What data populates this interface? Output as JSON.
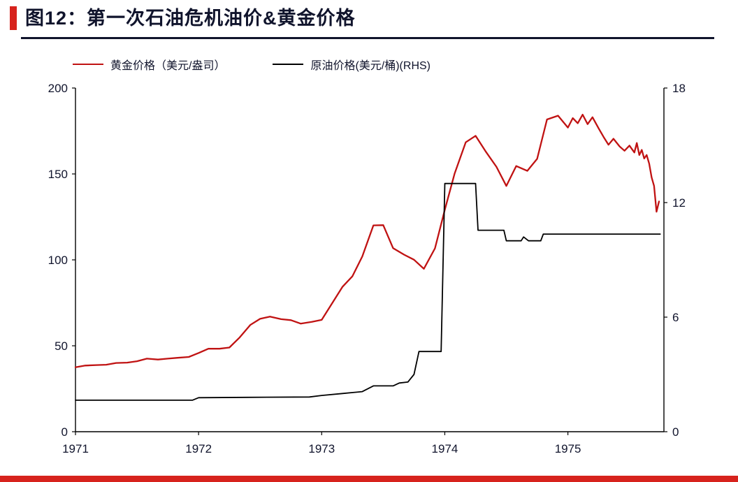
{
  "page": {
    "title_prefix": "图12：",
    "title": "第一次石油危机油价&黄金价格"
  },
  "legend": {
    "items": [
      {
        "label": "黄金价格（美元/盎司）",
        "color": "#c01212"
      },
      {
        "label": "原油价格(美元/桶)(RHS)",
        "color": "#000000"
      }
    ]
  },
  "chart_data": {
    "type": "line",
    "title": "第一次石油危机油价&黄金价格",
    "x_range": [
      1971,
      1975.78
    ],
    "x_ticks": [
      1971,
      1972,
      1973,
      1974,
      1975
    ],
    "grid": false,
    "legend_position": "top-left",
    "left_axis": {
      "label": "黄金价格（美元/盎司）",
      "range": [
        0,
        200
      ],
      "ticks": [
        0,
        50,
        100,
        150,
        200
      ]
    },
    "right_axis": {
      "label": "原油价格(美元/桶)(RHS)",
      "range": [
        0,
        18
      ],
      "ticks": [
        0,
        6,
        12,
        18
      ]
    },
    "series": [
      {
        "name": "黄金价格（美元/盎司）",
        "axis": "left",
        "color": "#c01212",
        "points": [
          [
            1971.0,
            37.5
          ],
          [
            1971.08,
            38.5
          ],
          [
            1971.17,
            38.8
          ],
          [
            1971.25,
            39.0
          ],
          [
            1971.33,
            40.0
          ],
          [
            1971.42,
            40.2
          ],
          [
            1971.5,
            41.0
          ],
          [
            1971.58,
            42.5
          ],
          [
            1971.67,
            42.0
          ],
          [
            1971.75,
            42.5
          ],
          [
            1971.83,
            43.0
          ],
          [
            1971.92,
            43.5
          ],
          [
            1972.0,
            45.8
          ],
          [
            1972.08,
            48.3
          ],
          [
            1972.17,
            48.3
          ],
          [
            1972.25,
            49.0
          ],
          [
            1972.33,
            54.6
          ],
          [
            1972.42,
            62.1
          ],
          [
            1972.5,
            65.7
          ],
          [
            1972.58,
            67.0
          ],
          [
            1972.67,
            65.5
          ],
          [
            1972.75,
            64.9
          ],
          [
            1972.83,
            62.9
          ],
          [
            1972.92,
            63.9
          ],
          [
            1973.0,
            65.1
          ],
          [
            1973.08,
            74.2
          ],
          [
            1973.17,
            84.4
          ],
          [
            1973.25,
            90.5
          ],
          [
            1973.33,
            102.0
          ],
          [
            1973.42,
            120.1
          ],
          [
            1973.5,
            120.2
          ],
          [
            1973.58,
            106.8
          ],
          [
            1973.67,
            103.0
          ],
          [
            1973.75,
            100.1
          ],
          [
            1973.83,
            94.8
          ],
          [
            1973.92,
            106.7
          ],
          [
            1974.0,
            129.2
          ],
          [
            1974.08,
            150.2
          ],
          [
            1974.17,
            168.4
          ],
          [
            1974.25,
            172.2
          ],
          [
            1974.33,
            163.3
          ],
          [
            1974.42,
            154.1
          ],
          [
            1974.5,
            143.0
          ],
          [
            1974.58,
            154.6
          ],
          [
            1974.67,
            151.8
          ],
          [
            1974.75,
            158.8
          ],
          [
            1974.83,
            181.7
          ],
          [
            1974.92,
            183.9
          ],
          [
            1975.0,
            177.0
          ],
          [
            1975.04,
            182.5
          ],
          [
            1975.08,
            179.5
          ],
          [
            1975.12,
            184.5
          ],
          [
            1975.16,
            179.0
          ],
          [
            1975.2,
            183.0
          ],
          [
            1975.25,
            176.5
          ],
          [
            1975.29,
            171.5
          ],
          [
            1975.33,
            167.0
          ],
          [
            1975.37,
            170.5
          ],
          [
            1975.42,
            166.0
          ],
          [
            1975.46,
            163.5
          ],
          [
            1975.5,
            166.5
          ],
          [
            1975.54,
            162.5
          ],
          [
            1975.56,
            168.0
          ],
          [
            1975.58,
            161.0
          ],
          [
            1975.6,
            164.0
          ],
          [
            1975.62,
            159.0
          ],
          [
            1975.64,
            161.0
          ],
          [
            1975.66,
            156.0
          ],
          [
            1975.68,
            148.0
          ],
          [
            1975.7,
            143.0
          ],
          [
            1975.72,
            128.0
          ],
          [
            1975.74,
            134.0
          ]
        ]
      },
      {
        "name": "原油价格(美元/桶)(RHS)",
        "axis": "right",
        "color": "#000000",
        "points": [
          [
            1971.0,
            1.65
          ],
          [
            1971.5,
            1.65
          ],
          [
            1971.95,
            1.65
          ],
          [
            1972.0,
            1.78
          ],
          [
            1972.4,
            1.8
          ],
          [
            1972.9,
            1.82
          ],
          [
            1973.0,
            1.9
          ],
          [
            1973.17,
            2.0
          ],
          [
            1973.33,
            2.1
          ],
          [
            1973.42,
            2.4
          ],
          [
            1973.58,
            2.4
          ],
          [
            1973.63,
            2.55
          ],
          [
            1973.7,
            2.6
          ],
          [
            1973.75,
            3.0
          ],
          [
            1973.79,
            4.2
          ],
          [
            1973.97,
            4.2
          ],
          [
            1974.0,
            13.0
          ],
          [
            1974.25,
            13.0
          ],
          [
            1974.27,
            10.55
          ],
          [
            1974.48,
            10.55
          ],
          [
            1974.5,
            10.0
          ],
          [
            1974.62,
            10.0
          ],
          [
            1974.64,
            10.2
          ],
          [
            1974.68,
            10.0
          ],
          [
            1974.78,
            10.0
          ],
          [
            1974.8,
            10.35
          ],
          [
            1975.2,
            10.35
          ],
          [
            1975.5,
            10.35
          ],
          [
            1975.75,
            10.35
          ]
        ]
      }
    ]
  }
}
